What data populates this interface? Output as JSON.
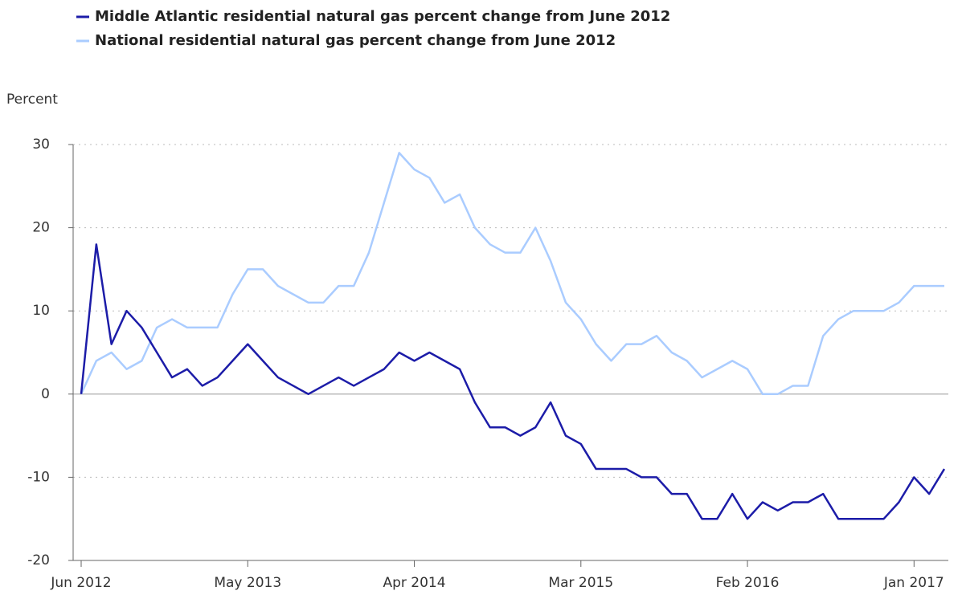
{
  "chart_data": {
    "type": "line",
    "y_label": "Percent",
    "categories": [
      "Jun 2012",
      null,
      null,
      null,
      null,
      null,
      null,
      null,
      null,
      null,
      null,
      "May 2013",
      null,
      null,
      null,
      null,
      null,
      null,
      null,
      null,
      null,
      null,
      "Apr 2014",
      null,
      null,
      null,
      null,
      null,
      null,
      null,
      null,
      null,
      null,
      "Mar 2015",
      null,
      null,
      null,
      null,
      null,
      null,
      null,
      null,
      null,
      null,
      "Feb 2016",
      null,
      null,
      null,
      null,
      null,
      null,
      null,
      null,
      null,
      null,
      "Jan 2017",
      null,
      null
    ],
    "series": [
      {
        "name": "Middle Atlantic residential natural gas percent change from June 2012",
        "color": "#1c1ca8",
        "values": [
          0,
          18,
          6,
          10,
          8,
          5,
          2,
          3,
          1,
          2,
          4,
          6,
          4,
          2,
          1,
          0,
          1,
          2,
          1,
          2,
          3,
          5,
          4,
          5,
          4,
          3,
          -1,
          -4,
          -4,
          -5,
          -4,
          -1,
          -5,
          -6,
          -9,
          -9,
          -9,
          -10,
          -10,
          -12,
          -12,
          -15,
          -15,
          -12,
          -15,
          -13,
          -14,
          -13,
          -13,
          -12,
          -15,
          -15,
          -15,
          -15,
          -13,
          -10,
          -12,
          -9
        ]
      },
      {
        "name": "National residential natural gas percent change from June 2012",
        "color": "#aaccff",
        "values": [
          0,
          4,
          5,
          3,
          4,
          8,
          9,
          8,
          8,
          8,
          12,
          15,
          15,
          13,
          12,
          11,
          11,
          13,
          13,
          17,
          23,
          29,
          27,
          26,
          23,
          24,
          20,
          18,
          17,
          17,
          20,
          16,
          11,
          9,
          6,
          4,
          6,
          6,
          7,
          5,
          4,
          2,
          3,
          4,
          3,
          0,
          0,
          1,
          1,
          7,
          9,
          10,
          10,
          10,
          11,
          13,
          13,
          13
        ]
      }
    ],
    "ylim": [
      -20,
      30
    ],
    "yticks": [
      -20,
      -10,
      0,
      10,
      20,
      30
    ],
    "grid": true
  }
}
